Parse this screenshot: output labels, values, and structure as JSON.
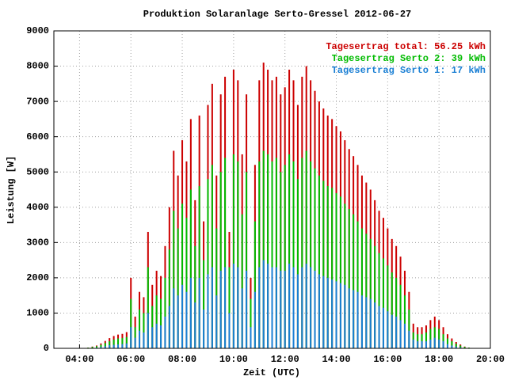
{
  "chart_data": {
    "type": "bar",
    "title": "Produktion Solaranlage Serto-Gressel 2012-06-27",
    "x_label": "Zeit (UTC)",
    "y_label": "Leistung [W]",
    "x": [
      260,
      270,
      280,
      290,
      300,
      310,
      320,
      330,
      340,
      350,
      360,
      370,
      380,
      390,
      400,
      410,
      420,
      430,
      440,
      450,
      460,
      470,
      480,
      490,
      500,
      510,
      520,
      530,
      540,
      550,
      560,
      570,
      580,
      590,
      600,
      610,
      620,
      630,
      640,
      650,
      660,
      670,
      680,
      690,
      700,
      710,
      720,
      730,
      740,
      750,
      760,
      770,
      780,
      790,
      800,
      810,
      820,
      830,
      840,
      850,
      860,
      870,
      880,
      890,
      900,
      910,
      920,
      930,
      940,
      950,
      960,
      970,
      980,
      990,
      1000,
      1010,
      1020,
      1030,
      1040,
      1050,
      1060,
      1070,
      1080,
      1090,
      1100,
      1110,
      1120,
      1130,
      1140,
      1150
    ],
    "series": [
      {
        "name": "Tagesertrag total: 56.25 kWh",
        "color": "#cc0000",
        "values": [
          20,
          50,
          80,
          140,
          210,
          290,
          350,
          390,
          410,
          460,
          2000,
          900,
          1600,
          1450,
          3300,
          1800,
          2200,
          2050,
          2900,
          4000,
          5600,
          4900,
          5900,
          5300,
          6500,
          4200,
          6600,
          3600,
          6900,
          7500,
          4900,
          7200,
          7700,
          3300,
          7900,
          7600,
          5500,
          7200,
          2000,
          5200,
          7600,
          8100,
          7900,
          7600,
          7700,
          7200,
          7400,
          7900,
          7600,
          6900,
          7700,
          8000,
          7600,
          7300,
          7000,
          6800,
          6600,
          6500,
          6300,
          6150,
          5900,
          5650,
          5450,
          5200,
          4900,
          4700,
          4500,
          4200,
          3900,
          3700,
          3400,
          3100,
          2900,
          2600,
          2200,
          1600,
          700,
          600,
          600,
          650,
          800,
          900,
          800,
          600,
          400,
          280,
          180,
          110,
          50,
          20
        ]
      },
      {
        "name": "Tagesertrag Serto 2: 39 kWh",
        "color": "#00bb00",
        "values": [
          20,
          40,
          60,
          100,
          150,
          200,
          250,
          280,
          290,
          320,
          1400,
          600,
          1100,
          1000,
          2300,
          1200,
          1500,
          1400,
          2000,
          2800,
          3900,
          3400,
          4100,
          3700,
          4500,
          2900,
          4600,
          2500,
          4800,
          5200,
          3400,
          5000,
          5400,
          2300,
          5500,
          5300,
          3800,
          5000,
          1400,
          3600,
          5300,
          5600,
          5500,
          5300,
          5400,
          5000,
          5200,
          5500,
          5300,
          4800,
          5400,
          5600,
          5300,
          5100,
          4900,
          4750,
          4600,
          4550,
          4400,
          4300,
          4100,
          3950,
          3800,
          3600,
          3400,
          3250,
          3100,
          2900,
          2700,
          2550,
          2350,
          2150,
          2000,
          1800,
          1500,
          1100,
          450,
          400,
          400,
          450,
          550,
          600,
          550,
          400,
          280,
          200,
          130,
          80,
          40,
          20
        ]
      },
      {
        "name": "Tagesertrag Serto 1: 17 kWh",
        "color": "#1a7fd4",
        "values": [
          0,
          10,
          20,
          40,
          60,
          90,
          100,
          110,
          120,
          140,
          600,
          300,
          500,
          450,
          1000,
          600,
          700,
          650,
          900,
          1200,
          1700,
          1500,
          1800,
          1600,
          2000,
          1300,
          2000,
          1100,
          2100,
          2300,
          1500,
          2200,
          2300,
          1000,
          2400,
          2300,
          1700,
          2200,
          600,
          1600,
          2300,
          2500,
          2400,
          2300,
          2300,
          2200,
          2200,
          2400,
          2300,
          2100,
          2300,
          2400,
          2300,
          2200,
          2100,
          2050,
          2000,
          1950,
          1900,
          1850,
          1800,
          1700,
          1650,
          1600,
          1500,
          1450,
          1400,
          1300,
          1200,
          1150,
          1050,
          950,
          900,
          800,
          700,
          500,
          250,
          200,
          200,
          200,
          250,
          300,
          250,
          200,
          120,
          80,
          50,
          30,
          10,
          0
        ]
      }
    ],
    "xlim": [
      180,
      1200
    ],
    "xticks": [
      {
        "value": 240,
        "label": "04:00"
      },
      {
        "value": 360,
        "label": "06:00"
      },
      {
        "value": 480,
        "label": "08:00"
      },
      {
        "value": 600,
        "label": "10:00"
      },
      {
        "value": 720,
        "label": "12:00"
      },
      {
        "value": 840,
        "label": "14:00"
      },
      {
        "value": 960,
        "label": "16:00"
      },
      {
        "value": 1080,
        "label": "18:00"
      },
      {
        "value": 1200,
        "label": "20:00"
      }
    ],
    "ylim": [
      0,
      9000
    ],
    "yticks": [
      0,
      1000,
      2000,
      3000,
      4000,
      5000,
      6000,
      7000,
      8000,
      9000
    ],
    "grid": true,
    "legend": "upper right"
  }
}
